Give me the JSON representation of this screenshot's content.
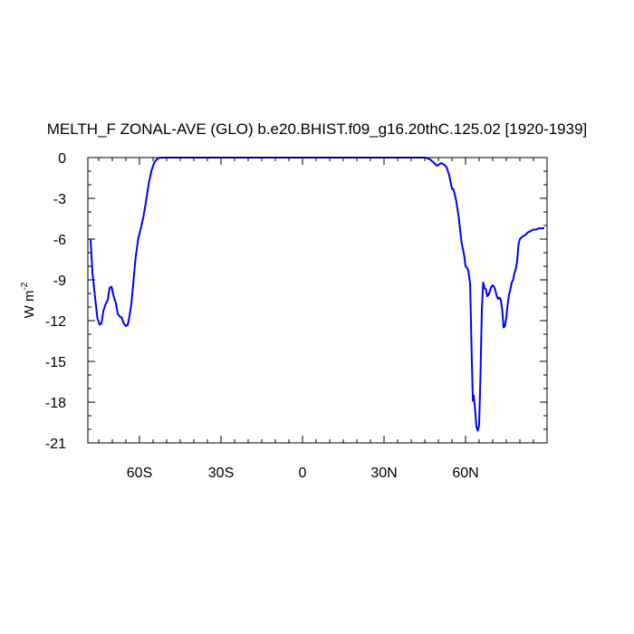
{
  "chart_data": {
    "type": "line",
    "title": "MELTH_F ZONAL-AVE (GLO) b.e20.BHIST.f09_g16.20thC.125.02 [1920-1939]",
    "xlabel": "",
    "ylabel": "W m",
    "ylabel_superscript": "-2",
    "xlim": [
      -79,
      90
    ],
    "ylim": [
      -21,
      0
    ],
    "x_ticks": [
      {
        "value": -60,
        "label": "60S"
      },
      {
        "value": -30,
        "label": "30S"
      },
      {
        "value": 0,
        "label": "0"
      },
      {
        "value": 30,
        "label": "30N"
      },
      {
        "value": 60,
        "label": "60N"
      }
    ],
    "y_ticks": [
      {
        "value": 0,
        "label": "0"
      },
      {
        "value": -3,
        "label": "-3"
      },
      {
        "value": -6,
        "label": "-6"
      },
      {
        "value": -9,
        "label": "-9"
      },
      {
        "value": -12,
        "label": "-12"
      },
      {
        "value": -15,
        "label": "-15"
      },
      {
        "value": -18,
        "label": "-18"
      },
      {
        "value": -21,
        "label": "-21"
      }
    ],
    "grid": false,
    "line_color": "#0000ff",
    "series": [
      {
        "x": [
          -78,
          -77.3,
          -76.5,
          -75.5,
          -74.7,
          -74,
          -73.3,
          -72.5,
          -71.7,
          -71,
          -70.3,
          -69.5,
          -68.7,
          -68,
          -67.2,
          -66.5,
          -65.8,
          -65,
          -64.3,
          -63.7,
          -63,
          -62.3,
          -61.5,
          -60.5,
          -59.5,
          -58.5,
          -57.5,
          -56.5,
          -55.5,
          -54.5,
          -53.5,
          -52.5,
          -51,
          -48,
          -40,
          -30,
          -20,
          -10,
          0,
          10,
          20,
          30,
          38,
          43,
          45,
          46,
          47,
          48.5,
          49.5,
          50,
          51,
          52,
          53,
          54,
          55,
          55.5,
          56.5,
          57.5,
          58.5,
          59.5,
          60,
          60.5,
          61,
          61.7,
          62.2,
          62.7,
          63,
          63.5,
          64,
          64.5,
          65,
          65.5,
          66,
          66.5,
          67,
          67.5,
          68,
          68.5,
          69,
          69.5,
          70,
          70.5,
          71,
          71.5,
          72,
          72.5,
          73,
          73.5,
          74,
          74.5,
          75,
          75.5,
          76,
          76.5,
          77,
          77.5,
          78,
          78.5,
          79,
          79.5,
          80,
          81,
          82,
          83,
          84,
          85,
          86,
          87,
          88,
          89
        ],
        "y": [
          -6,
          -8.5,
          -10,
          -11.8,
          -12.3,
          -12.2,
          -11.3,
          -10.8,
          -10.5,
          -9.6,
          -9.5,
          -10.2,
          -10.7,
          -11.5,
          -11.7,
          -11.8,
          -12.2,
          -12.4,
          -12.3,
          -11.7,
          -10.8,
          -9.3,
          -7.5,
          -6,
          -5.2,
          -4.3,
          -3.1,
          -1.8,
          -0.9,
          -0.35,
          -0.1,
          -0.02,
          0,
          0,
          0,
          0,
          0,
          0,
          0,
          0,
          0,
          0,
          0,
          0,
          0,
          -0.05,
          -0.15,
          -0.4,
          -0.6,
          -0.55,
          -0.4,
          -0.5,
          -0.7,
          -1.3,
          -2.3,
          -2.3,
          -3.1,
          -4.4,
          -6.2,
          -7.2,
          -8,
          -8.1,
          -8.3,
          -9.3,
          -14,
          -17.9,
          -17.5,
          -18.5,
          -19.8,
          -20.1,
          -19.7,
          -16,
          -11.2,
          -9.2,
          -9.6,
          -9.7,
          -10.2,
          -10.1,
          -9.8,
          -9.5,
          -9.4,
          -9.5,
          -9.8,
          -10.2,
          -10.4,
          -10.3,
          -10.5,
          -11.2,
          -12.5,
          -12.4,
          -11.8,
          -10.8,
          -10.1,
          -9.7,
          -9.2,
          -9,
          -8.5,
          -8.2,
          -7.6,
          -6.4,
          -6,
          -5.8,
          -5.7,
          -5.5,
          -5.4,
          -5.3,
          -5.3,
          -5.2,
          -5.2,
          -5.2
        ]
      }
    ]
  }
}
